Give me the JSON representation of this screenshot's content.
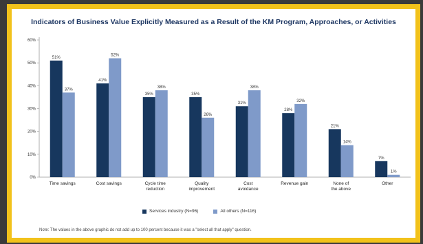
{
  "colors": {
    "frame": "#f2c21b",
    "background": "#3a3a3a",
    "series_1": "#17375e",
    "series_2": "#7f9ac9"
  },
  "chart_data": {
    "type": "bar",
    "title": "Indicators of Business Value Explicitly Measured as a Result of the KM Program, Approaches, or Activities",
    "categories": [
      "Time savings",
      "Cost savings",
      "Cycle time reduction",
      "Quality improvement",
      "Cost avoidance",
      "Revenue gain",
      "None of the above",
      "Other"
    ],
    "series": [
      {
        "name": "Services industry (N=96)",
        "values": [
          51,
          41,
          35,
          35,
          31,
          28,
          21,
          7
        ]
      },
      {
        "name": "All others (N=116)",
        "values": [
          37,
          52,
          38,
          26,
          38,
          32,
          14,
          1
        ]
      }
    ],
    "data_labels": [
      [
        "51%",
        "41%",
        "35%",
        "35%",
        "31%",
        "28%",
        "21%",
        "7%"
      ],
      [
        "37%",
        "52%",
        "38%",
        "26%",
        "38%",
        "32%",
        "14%",
        "1%"
      ]
    ],
    "ylim": [
      0,
      60
    ],
    "yticks": [
      "0%",
      "10%",
      "20%",
      "30%",
      "40%",
      "50%",
      "60%"
    ],
    "grid": false,
    "legend_position": "bottom",
    "note": "Note: The values in the above graphic do not add up to 100 percent because it was a \"select all that apply\" question."
  }
}
